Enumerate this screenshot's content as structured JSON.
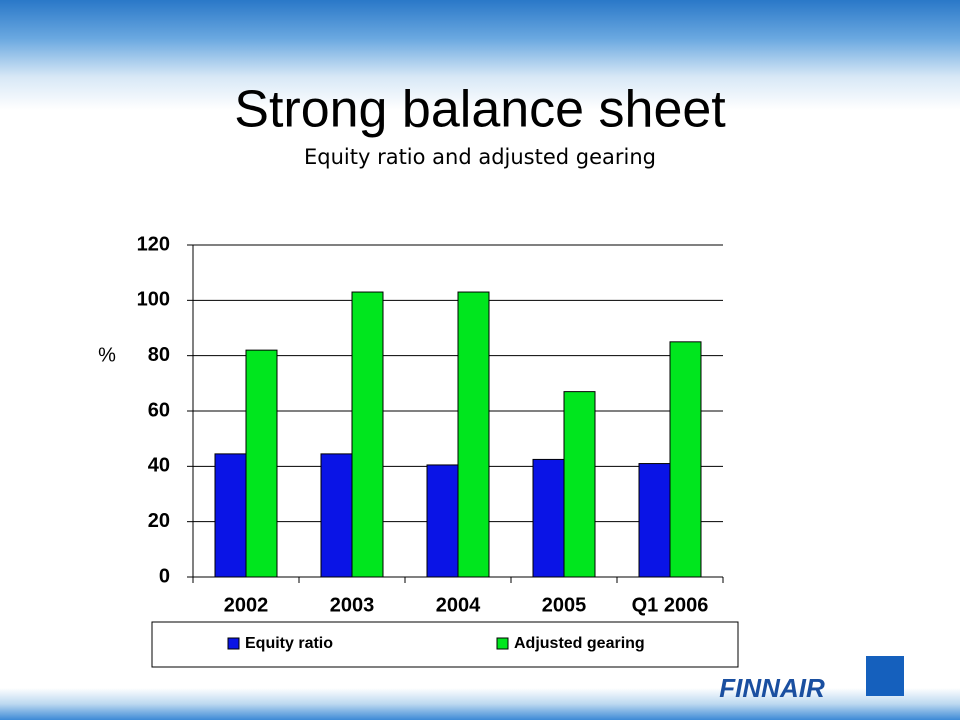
{
  "title": "Strong balance sheet",
  "subtitle": "Equity ratio and adjusted gearing",
  "logo": "FINNAIR",
  "chart_data": {
    "type": "bar",
    "y_label": "%",
    "categories": [
      "2002",
      "2003",
      "2004",
      "2005",
      "Q1 2006"
    ],
    "series": [
      {
        "name": "Equity ratio",
        "color": "#0a14e6",
        "values": [
          44.5,
          44.5,
          40.5,
          42.5,
          41
        ]
      },
      {
        "name": "Adjusted gearing",
        "color": "#00e61e",
        "values": [
          82,
          103,
          103,
          67,
          85
        ]
      }
    ],
    "ylim": [
      0,
      120
    ],
    "yticks": [
      0,
      20,
      40,
      60,
      80,
      100,
      120
    ],
    "grid": true,
    "legend": "bottom"
  }
}
